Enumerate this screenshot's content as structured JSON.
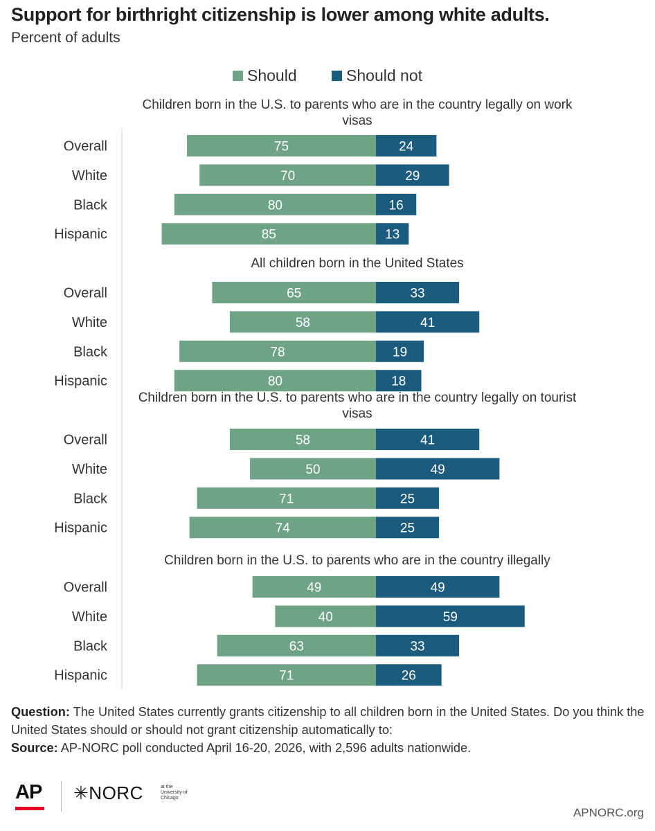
{
  "colors": {
    "should": "#6fa386",
    "should_not": "#1b5c7e"
  },
  "footer": {
    "question_label": "Question:",
    "question_text": " The United States currently grants citizenship to all children born in the United States. Do you think the United States should or should not grant citizenship automatically to:",
    "source_label": "Source:",
    "source_text": " AP-NORC poll conducted April 16-20, 2026, with 2,596 adults nationwide."
  },
  "logos": {
    "ap": "AP",
    "norc": "NORC",
    "norc_univ": [
      "at the",
      "University of",
      "Chicago"
    ],
    "site": "APNORC.org"
  },
  "chart_data": {
    "type": "bar",
    "orientation": "horizontal-diverging",
    "title": "Support for birthright citizenship is lower among white adults.",
    "subtitle": "Percent of adults",
    "legend": [
      "Should",
      "Should not"
    ],
    "legend_position": "top",
    "grid": false,
    "categories": [
      "Overall",
      "White",
      "Black",
      "Hispanic"
    ],
    "groups": [
      {
        "label": "Children born in the U.S. to parents who are in the country legally on work visas",
        "should": [
          75,
          70,
          80,
          85
        ],
        "should_not": [
          24,
          29,
          16,
          13
        ]
      },
      {
        "label": "All children born in the United States",
        "should": [
          65,
          58,
          78,
          80
        ],
        "should_not": [
          33,
          41,
          19,
          18
        ]
      },
      {
        "label": "Children born in the U.S. to parents who are in the country legally on tourist visas",
        "should": [
          58,
          50,
          71,
          74
        ],
        "should_not": [
          41,
          49,
          25,
          25
        ]
      },
      {
        "label": "Children born in the U.S. to parents who are in the country illegally",
        "should": [
          49,
          40,
          63,
          71
        ],
        "should_not": [
          49,
          59,
          33,
          26
        ]
      }
    ]
  }
}
